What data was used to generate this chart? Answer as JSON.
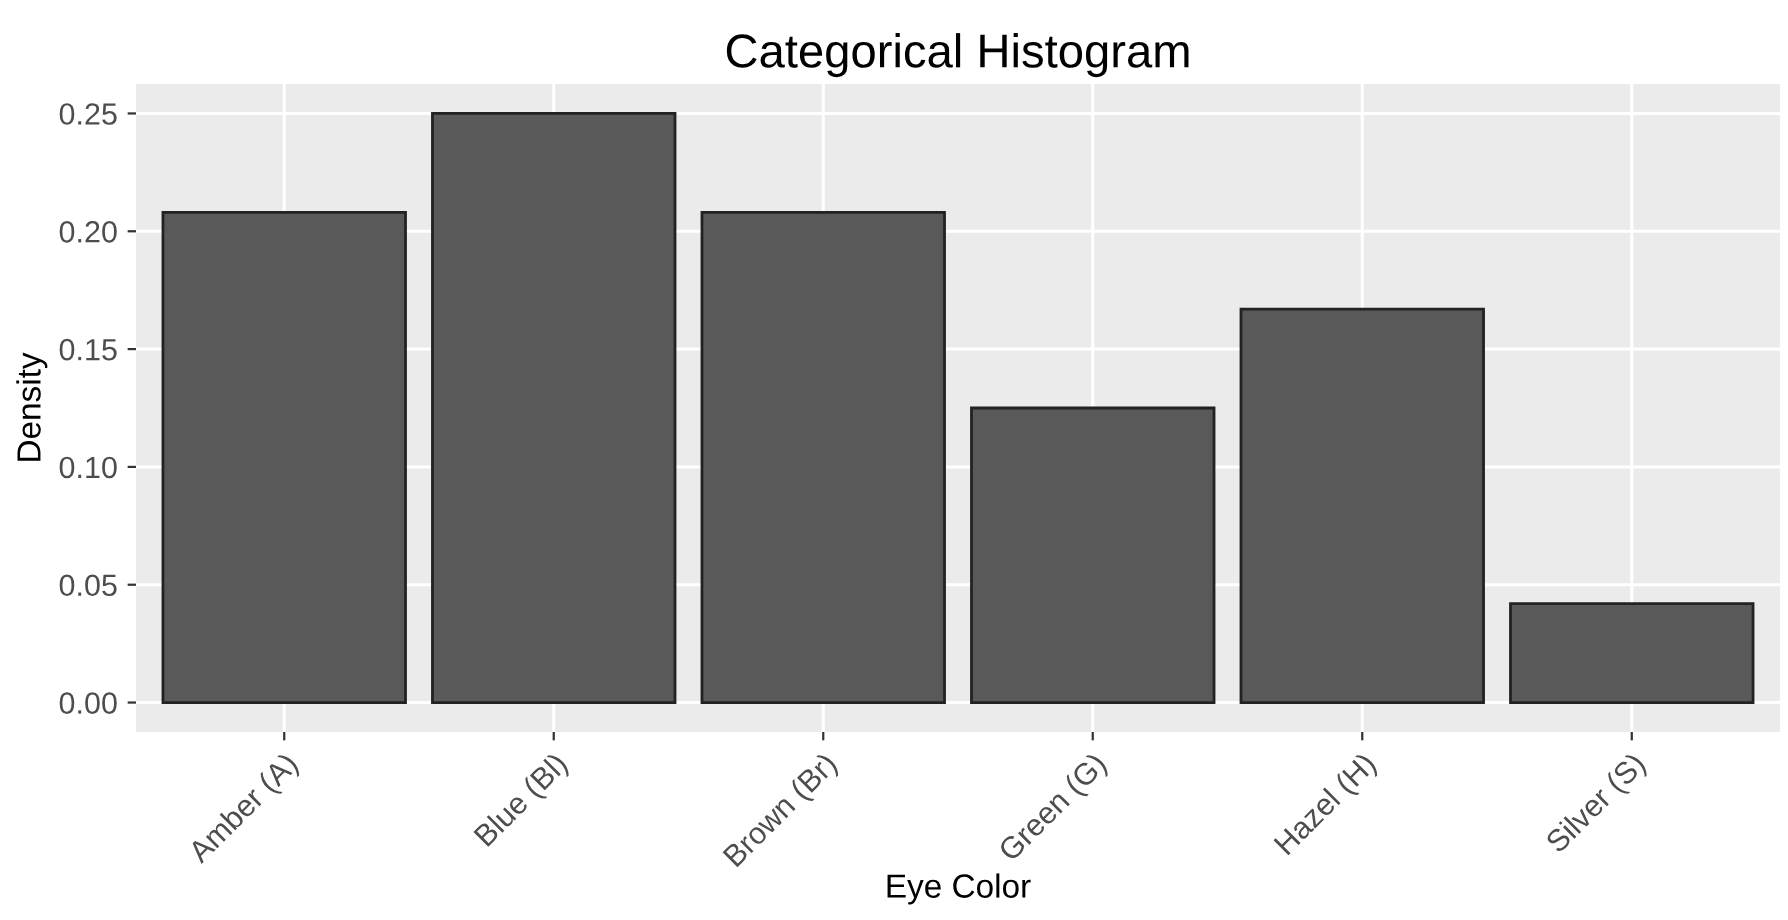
{
  "chart_data": {
    "type": "bar",
    "title": "Categorical Histogram",
    "xlabel": "Eye Color",
    "ylabel": "Density",
    "categories": [
      "Amber (A)",
      "Blue (Bl)",
      "Brown (Br)",
      "Green (G)",
      "Hazel (H)",
      "Silver (S)"
    ],
    "values": [
      0.208,
      0.25,
      0.208,
      0.125,
      0.167,
      0.042
    ],
    "color": "#595959",
    "ylim": [
      -0.0125,
      0.2625
    ],
    "yticks": [
      {
        "value": 0,
        "label": "0.00"
      },
      {
        "value": 0.05,
        "label": "0.05"
      },
      {
        "value": 0.1,
        "label": "0.10"
      },
      {
        "value": 0.15,
        "label": "0.15"
      },
      {
        "value": 0.2,
        "label": "0.20"
      },
      {
        "value": 0.25,
        "label": "0.25"
      }
    ],
    "grid": true
  }
}
